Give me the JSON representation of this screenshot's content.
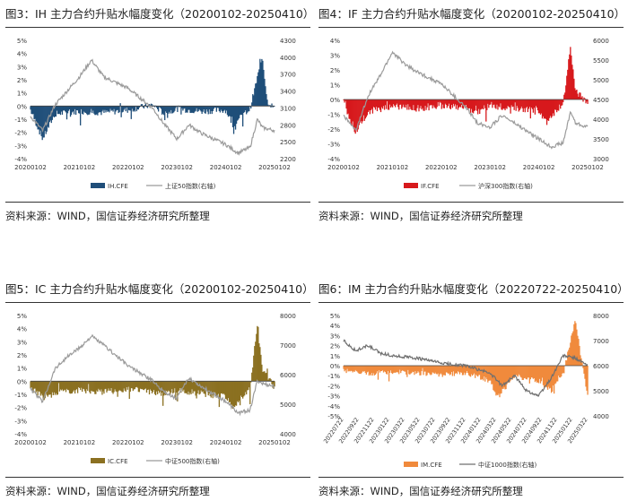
{
  "source_label": "资料来源：WIND，国信证券经济研究所整理",
  "colors": {
    "ih": "#1f4e79",
    "if": "#d7191c",
    "ic": "#8b7021",
    "im": "#f08a3c",
    "index": "#9b9b9b",
    "im_index": "#6f6f6f"
  },
  "chart_data": [
    {
      "type": "bar",
      "title": "图3：IH 主力合约升贴水幅度变化（20200102-20250410）",
      "x": [
        "20200102",
        "20210102",
        "20220102",
        "20230102",
        "20240102",
        "20250102"
      ],
      "ylim": [
        -4,
        5
      ],
      "yticks": [
        "-4%",
        "-3%",
        "-2%",
        "-1%",
        "0%",
        "1%",
        "2%",
        "3%",
        "4%",
        "5%"
      ],
      "y2lim": [
        2200,
        4300
      ],
      "y2ticks": [
        "2200",
        "2500",
        "2800",
        "3100",
        "3400",
        "3700",
        "4000",
        "4300"
      ],
      "series": [
        {
          "name": "IH.CFE",
          "kind": "bar",
          "points": [
            [
              0,
              -0.3
            ],
            [
              0.05,
              -2.5
            ],
            [
              0.1,
              -0.6
            ],
            [
              0.2,
              -0.4
            ],
            [
              0.3,
              -0.5
            ],
            [
              0.4,
              -0.3
            ],
            [
              0.5,
              0.1
            ],
            [
              0.55,
              -0.6
            ],
            [
              0.6,
              -0.2
            ],
            [
              0.7,
              -0.4
            ],
            [
              0.8,
              -0.3
            ],
            [
              0.83,
              -1.4
            ],
            [
              0.9,
              -0.2
            ],
            [
              0.95,
              3.8
            ],
            [
              0.97,
              0.4
            ],
            [
              1.0,
              -0.2
            ]
          ]
        },
        {
          "name": "上证50指数(右轴)",
          "kind": "line",
          "points": [
            [
              0,
              2950
            ],
            [
              0.05,
              2700
            ],
            [
              0.1,
              3150
            ],
            [
              0.15,
              3400
            ],
            [
              0.2,
              3650
            ],
            [
              0.25,
              3950
            ],
            [
              0.3,
              3650
            ],
            [
              0.4,
              3450
            ],
            [
              0.5,
              3100
            ],
            [
              0.55,
              2800
            ],
            [
              0.6,
              2550
            ],
            [
              0.65,
              2800
            ],
            [
              0.7,
              2650
            ],
            [
              0.8,
              2450
            ],
            [
              0.85,
              2300
            ],
            [
              0.9,
              2400
            ],
            [
              0.93,
              2900
            ],
            [
              0.95,
              2750
            ],
            [
              1.0,
              2700
            ]
          ]
        }
      ]
    },
    {
      "type": "bar",
      "title": "图4：IF 主力合约升贴水幅度变化（20200102-20250410）",
      "x": [
        "20200102",
        "20210102",
        "20220102",
        "20230102",
        "20240102",
        "20250102"
      ],
      "ylim": [
        -4,
        4
      ],
      "yticks": [
        "-4%",
        "-3%",
        "-2%",
        "-1%",
        "0%",
        "1%",
        "2%",
        "3%",
        "4%"
      ],
      "y2lim": [
        3000,
        6000
      ],
      "y2ticks": [
        "3000",
        "3500",
        "4000",
        "4500",
        "5000",
        "5500",
        "6000"
      ],
      "series": [
        {
          "name": "IF.CFE",
          "kind": "bar",
          "points": [
            [
              0,
              -0.3
            ],
            [
              0.05,
              -2.2
            ],
            [
              0.1,
              -0.8
            ],
            [
              0.2,
              -0.5
            ],
            [
              0.3,
              -0.6
            ],
            [
              0.4,
              -0.4
            ],
            [
              0.5,
              -0.5
            ],
            [
              0.55,
              -0.9
            ],
            [
              0.6,
              -0.4
            ],
            [
              0.7,
              -0.6
            ],
            [
              0.8,
              -0.8
            ],
            [
              0.83,
              -1.6
            ],
            [
              0.9,
              -0.3
            ],
            [
              0.93,
              3.6
            ],
            [
              0.95,
              0.6
            ],
            [
              1.0,
              -0.2
            ]
          ]
        },
        {
          "name": "沪深300指数(右轴)",
          "kind": "line",
          "points": [
            [
              0,
              4100
            ],
            [
              0.05,
              3700
            ],
            [
              0.1,
              4600
            ],
            [
              0.15,
              5100
            ],
            [
              0.2,
              5700
            ],
            [
              0.25,
              5400
            ],
            [
              0.3,
              5200
            ],
            [
              0.4,
              4900
            ],
            [
              0.5,
              4300
            ],
            [
              0.55,
              3900
            ],
            [
              0.6,
              3800
            ],
            [
              0.65,
              4100
            ],
            [
              0.7,
              3900
            ],
            [
              0.8,
              3500
            ],
            [
              0.85,
              3300
            ],
            [
              0.9,
              3400
            ],
            [
              0.93,
              4200
            ],
            [
              0.95,
              3900
            ],
            [
              1.0,
              3800
            ]
          ]
        }
      ]
    },
    {
      "type": "bar",
      "title": "图5：IC 主力合约升贴水幅度变化（20200102-20250410）",
      "x": [
        "20200102",
        "20210102",
        "20220102",
        "20230102",
        "20240102",
        "20250102"
      ],
      "ylim": [
        -4,
        5
      ],
      "yticks": [
        "-4%",
        "-3%",
        "-2%",
        "-1%",
        "0%",
        "1%",
        "2%",
        "3%",
        "4%",
        "5%"
      ],
      "y2lim": [
        4000,
        8000
      ],
      "y2ticks": [
        "4000",
        "5000",
        "6000",
        "7000",
        "8000"
      ],
      "series": [
        {
          "name": "IC.CFE",
          "kind": "bar",
          "points": [
            [
              0,
              -0.5
            ],
            [
              0.05,
              -1.2
            ],
            [
              0.1,
              -0.9
            ],
            [
              0.2,
              -0.7
            ],
            [
              0.3,
              -0.8
            ],
            [
              0.4,
              -0.6
            ],
            [
              0.5,
              -0.8
            ],
            [
              0.55,
              -1.0
            ],
            [
              0.6,
              -0.7
            ],
            [
              0.7,
              -0.9
            ],
            [
              0.8,
              -1.2
            ],
            [
              0.83,
              -2.0
            ],
            [
              0.9,
              -0.6
            ],
            [
              0.93,
              4.5
            ],
            [
              0.95,
              1.0
            ],
            [
              1.0,
              -0.5
            ]
          ]
        },
        {
          "name": "中证500指数(右轴)",
          "kind": "line",
          "points": [
            [
              0,
              5500
            ],
            [
              0.05,
              5100
            ],
            [
              0.1,
              6200
            ],
            [
              0.15,
              6600
            ],
            [
              0.2,
              6900
            ],
            [
              0.25,
              7300
            ],
            [
              0.3,
              7000
            ],
            [
              0.4,
              6300
            ],
            [
              0.5,
              5800
            ],
            [
              0.55,
              5400
            ],
            [
              0.6,
              5200
            ],
            [
              0.65,
              5900
            ],
            [
              0.7,
              5600
            ],
            [
              0.8,
              5100
            ],
            [
              0.85,
              4700
            ],
            [
              0.9,
              4800
            ],
            [
              0.93,
              5800
            ],
            [
              0.95,
              5700
            ],
            [
              1.0,
              5600
            ]
          ]
        }
      ]
    },
    {
      "type": "bar",
      "title": "图6：IM 主力合约升贴水幅度变化（20220722-20250410）",
      "x": [
        "20220722",
        "20220922",
        "20221122",
        "20230122",
        "20230322",
        "20230522",
        "20230722",
        "20230922",
        "20231122",
        "20240122",
        "20240322",
        "20240522",
        "20240722",
        "20240922",
        "20241122",
        "20250122",
        "20250322"
      ],
      "ylim": [
        -5,
        5
      ],
      "yticks": [
        "-5%",
        "-4%",
        "-3%",
        "-2%",
        "-1%",
        "0%",
        "1%",
        "2%",
        "3%",
        "4%",
        "5%"
      ],
      "y2lim": [
        4000,
        8000
      ],
      "y2ticks": [
        "4000",
        "5000",
        "6000",
        "7000",
        "8000"
      ],
      "series": [
        {
          "name": "IM.CFE",
          "kind": "bar",
          "points": [
            [
              0,
              -0.5
            ],
            [
              0.1,
              -0.8
            ],
            [
              0.2,
              -0.6
            ],
            [
              0.3,
              -0.7
            ],
            [
              0.4,
              -0.9
            ],
            [
              0.5,
              -0.7
            ],
            [
              0.6,
              -1.5
            ],
            [
              0.63,
              -3.2
            ],
            [
              0.7,
              -1.0
            ],
            [
              0.75,
              -1.3
            ],
            [
              0.8,
              -1.5
            ],
            [
              0.85,
              -2.5
            ],
            [
              0.9,
              -0.9
            ],
            [
              0.95,
              4.7
            ],
            [
              0.97,
              1.2
            ],
            [
              1.0,
              -3.0
            ]
          ]
        },
        {
          "name": "中证1000指数(右轴)",
          "kind": "line",
          "points": [
            [
              0,
              7000
            ],
            [
              0.05,
              6600
            ],
            [
              0.1,
              6800
            ],
            [
              0.15,
              6500
            ],
            [
              0.2,
              6400
            ],
            [
              0.3,
              6300
            ],
            [
              0.4,
              6100
            ],
            [
              0.5,
              6000
            ],
            [
              0.6,
              5700
            ],
            [
              0.65,
              5200
            ],
            [
              0.7,
              5600
            ],
            [
              0.75,
              5000
            ],
            [
              0.8,
              4800
            ],
            [
              0.85,
              5500
            ],
            [
              0.9,
              6400
            ],
            [
              0.95,
              6300
            ],
            [
              1.0,
              6000
            ]
          ]
        }
      ]
    }
  ]
}
